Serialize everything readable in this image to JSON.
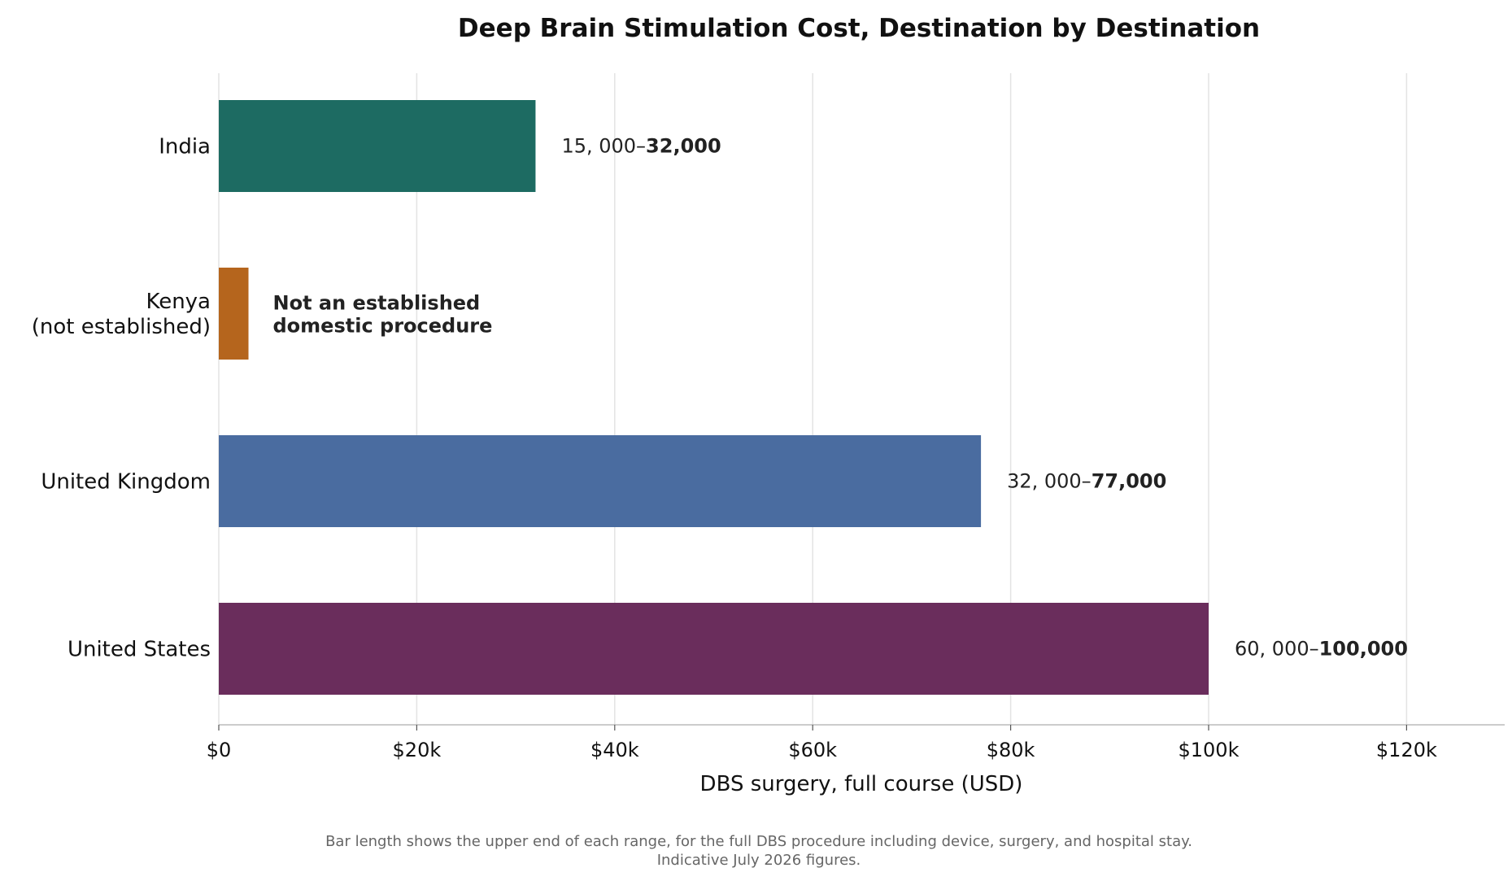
{
  "chart_data": {
    "type": "bar",
    "orientation": "horizontal",
    "title": "Deep Brain Stimulation Cost, Destination by Destination",
    "xlabel": "DBS surgery, full course (USD)",
    "ylabel": "",
    "xlim": [
      0,
      130000
    ],
    "xticks": [
      0,
      20000,
      40000,
      60000,
      80000,
      100000,
      120000
    ],
    "xtick_labels": [
      "$0",
      "$20k",
      "$40k",
      "$60k",
      "$80k",
      "$100k",
      "$120k"
    ],
    "grid": "vertical",
    "bars": [
      {
        "category": [
          "India"
        ],
        "value": 32000,
        "color": "#1d6b62",
        "label_low": "15, 000–",
        "label_high": "32,000"
      },
      {
        "category": [
          "Kenya",
          "(not established)"
        ],
        "value": 3000,
        "color": "#b5651d",
        "note": [
          "Not an established",
          "domestic procedure"
        ]
      },
      {
        "category": [
          "United Kingdom"
        ],
        "value": 77000,
        "color": "#4a6ca0",
        "label_low": "32, 000–",
        "label_high": "77,000"
      },
      {
        "category": [
          "United States"
        ],
        "value": 100000,
        "color": "#6a2d5c",
        "label_low": "60, 000–",
        "label_high": "100,000"
      }
    ],
    "footnote": [
      "Bar length shows the upper end of each range, for the full DBS procedure including device, surgery, and hospital stay.",
      "Indicative July 2026 figures."
    ]
  }
}
